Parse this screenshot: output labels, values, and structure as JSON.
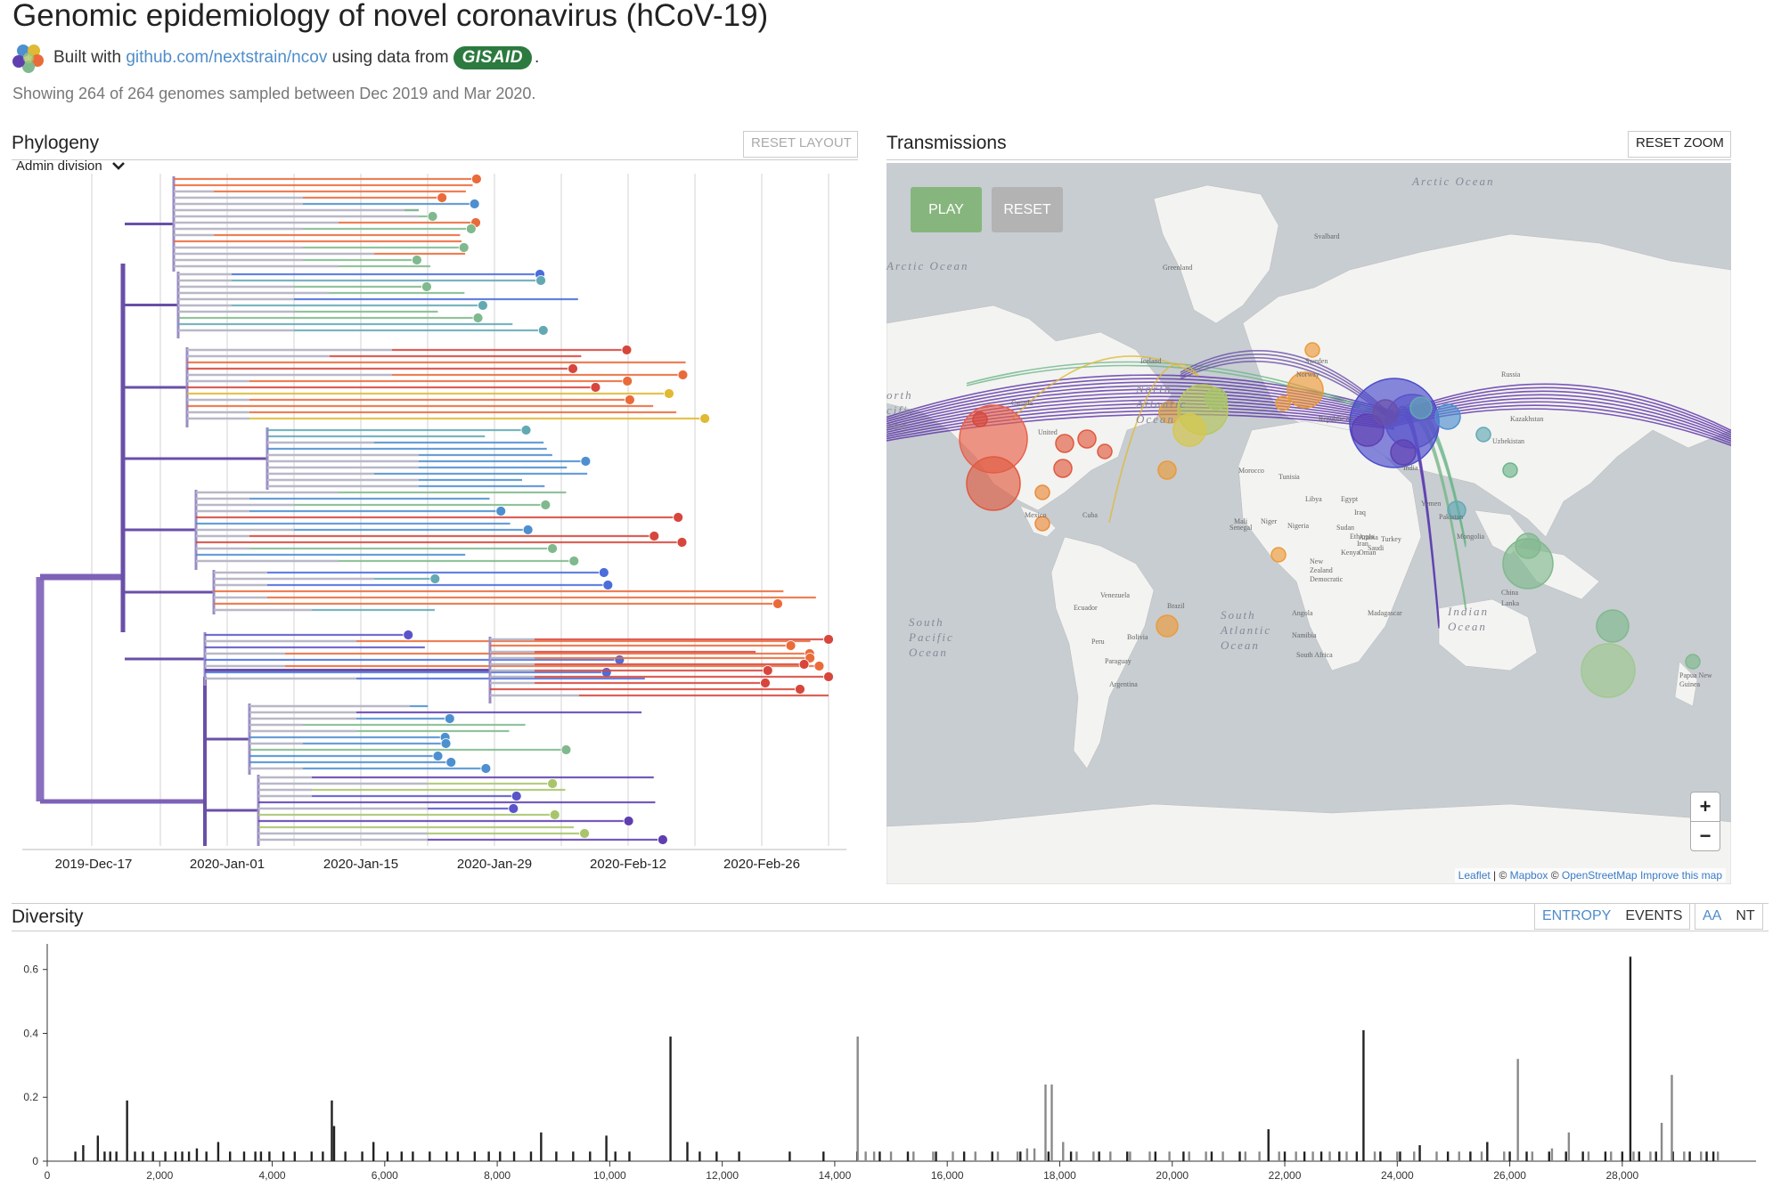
{
  "header": {
    "title": "Genomic epidemiology of novel coronavirus (hCoV-19)",
    "built_with": "Built with",
    "repo_link": "github.com/nextstrain/ncov",
    "using_data_from": "using data from",
    "gisaid": "GISAID",
    "period": ".",
    "showing": "Showing 264 of 264 genomes sampled between Dec 2019 and Mar 2020."
  },
  "phylogeny": {
    "title": "Phylogeny",
    "reset_layout": "RESET LAYOUT",
    "color_by": "Admin division",
    "date_ticks": [
      "2019-Dec-17",
      "2020-Jan-01",
      "2020-Jan-15",
      "2020-Jan-29",
      "2020-Feb-12",
      "2020-Feb-26"
    ]
  },
  "transmissions": {
    "title": "Transmissions",
    "reset_zoom": "RESET ZOOM",
    "play": "PLAY",
    "reset": "RESET",
    "zoom_in": "+",
    "zoom_out": "−",
    "attribution": {
      "leaflet": "Leaflet",
      "sep1": " | © ",
      "mapbox": "Mapbox",
      "sep2": " © ",
      "osm": "OpenStreetMap",
      "improve": "Improve this map"
    },
    "labels": {
      "arctic_ocean": "Arctic Ocean",
      "arctic_ocean_w": "Arctic Ocean",
      "north_atlantic": [
        "North",
        "Atlantic",
        "Ocean"
      ],
      "south_atlantic": [
        "South",
        "Atlantic",
        "Ocean"
      ],
      "south_pacific": [
        "South",
        "Pacific",
        "Ocean"
      ],
      "north_pacific": [
        "orth",
        "cific",
        "ean"
      ],
      "indian_ocean": [
        "Indian",
        "Ocean"
      ],
      "countries": [
        "Greenland",
        "Svalbard",
        "Iceland",
        "Sweden",
        "Norway",
        "Russia",
        "Canada",
        "United",
        "Mexico",
        "Cuba",
        "Venezuela",
        "Ecuador",
        "Peru",
        "Brazil",
        "Bolivia",
        "Paraguay",
        "Argentina",
        "Morocco",
        "Tunisia",
        "Libya",
        "Egypt",
        "Mali",
        "Niger",
        "Senegal",
        "Nigeria",
        "Sudan",
        "Ethiopia",
        "Kenya",
        "Angola",
        "Namibia",
        "South Africa",
        "Madagascar",
        "Turkey",
        "Iraq",
        "Iran",
        "Saudi",
        "Arabia",
        "Oman",
        "Yemen",
        "Pakistan",
        "India",
        "Uzbekistan",
        "Kazakhstan",
        "Mongolia",
        "China",
        "Lanka",
        "Papua New",
        "Guinea",
        "New",
        "Zealand",
        "Democratic",
        "Republic of",
        "the Congo",
        "Ukraine"
      ]
    }
  },
  "diversity": {
    "title": "Diversity",
    "entropy": "ENTROPY",
    "events": "EVENTS",
    "aa": "AA",
    "nt": "NT",
    "y_ticks": [
      "0",
      "0.2",
      "0.4",
      "0.6"
    ],
    "x_ticks": [
      "0",
      "2,000",
      "4,000",
      "6,000",
      "8,000",
      "10,000",
      "12,000",
      "14,000",
      "16,000",
      "18,000",
      "20,000",
      "22,000",
      "24,000",
      "26,000",
      "28,000"
    ]
  },
  "chart_data": {
    "type": "bar",
    "title": "Diversity",
    "xlim": [
      0,
      29903
    ],
    "ylim": [
      0,
      0.68
    ],
    "grid": false,
    "series": [
      {
        "points": [
          [
            500,
            0.03
          ],
          [
            640,
            0.05
          ],
          [
            900,
            0.08
          ],
          [
            1020,
            0.03
          ],
          [
            1120,
            0.03
          ],
          [
            1230,
            0.03
          ],
          [
            1420,
            0.19
          ],
          [
            1560,
            0.03
          ],
          [
            1700,
            0.03
          ],
          [
            1880,
            0.03
          ],
          [
            2100,
            0.03
          ],
          [
            2280,
            0.03
          ],
          [
            2400,
            0.03
          ],
          [
            2520,
            0.03
          ],
          [
            2660,
            0.04
          ],
          [
            2830,
            0.03
          ],
          [
            3040,
            0.06
          ],
          [
            3250,
            0.03
          ],
          [
            3500,
            0.03
          ],
          [
            3700,
            0.03
          ],
          [
            3800,
            0.03
          ],
          [
            3950,
            0.03
          ],
          [
            4200,
            0.03
          ],
          [
            4400,
            0.03
          ],
          [
            4700,
            0.03
          ],
          [
            4900,
            0.03
          ],
          [
            5060,
            0.19
          ],
          [
            5100,
            0.11
          ],
          [
            5300,
            0.03
          ],
          [
            5600,
            0.03
          ],
          [
            5800,
            0.06
          ],
          [
            6050,
            0.03
          ],
          [
            6300,
            0.03
          ],
          [
            6500,
            0.03
          ],
          [
            6800,
            0.03
          ],
          [
            7100,
            0.03
          ],
          [
            7300,
            0.03
          ],
          [
            7600,
            0.03
          ],
          [
            7850,
            0.03
          ],
          [
            8050,
            0.03
          ],
          [
            8300,
            0.03
          ],
          [
            8600,
            0.03
          ],
          [
            8780,
            0.09
          ],
          [
            9050,
            0.03
          ],
          [
            9350,
            0.03
          ],
          [
            9650,
            0.03
          ],
          [
            9940,
            0.08
          ],
          [
            10100,
            0.03
          ],
          [
            10350,
            0.03
          ],
          [
            11080,
            0.39
          ],
          [
            11380,
            0.06
          ],
          [
            11600,
            0.03
          ],
          [
            11900,
            0.03
          ],
          [
            12300,
            0.03
          ],
          [
            13200,
            0.03
          ],
          [
            13800,
            0.03
          ],
          [
            14400,
            0.03
          ],
          [
            14800,
            0.03
          ],
          [
            15300,
            0.03
          ],
          [
            15800,
            0.03
          ],
          [
            16300,
            0.03
          ],
          [
            16800,
            0.03
          ],
          [
            17300,
            0.03
          ],
          [
            17800,
            0.03
          ],
          [
            18200,
            0.03
          ],
          [
            18700,
            0.03
          ],
          [
            19200,
            0.03
          ],
          [
            19700,
            0.03
          ],
          [
            20200,
            0.03
          ],
          [
            20700,
            0.03
          ],
          [
            21200,
            0.03
          ],
          [
            21710,
            0.1
          ],
          [
            22000,
            0.03
          ],
          [
            22350,
            0.03
          ],
          [
            22650,
            0.03
          ],
          [
            22970,
            0.03
          ],
          [
            23280,
            0.03
          ],
          [
            23400,
            0.41
          ],
          [
            23700,
            0.03
          ],
          [
            24050,
            0.03
          ],
          [
            24400,
            0.05
          ],
          [
            24900,
            0.03
          ],
          [
            25300,
            0.03
          ],
          [
            25600,
            0.06
          ],
          [
            26000,
            0.03
          ],
          [
            26300,
            0.03
          ],
          [
            26700,
            0.03
          ],
          [
            27000,
            0.03
          ],
          [
            27300,
            0.03
          ],
          [
            27700,
            0.03
          ],
          [
            28000,
            0.03
          ],
          [
            28144,
            0.64
          ],
          [
            28300,
            0.03
          ],
          [
            28600,
            0.03
          ],
          [
            28900,
            0.03
          ],
          [
            29200,
            0.03
          ],
          [
            29500,
            0.03
          ],
          [
            29620,
            0.03
          ]
        ]
      },
      {
        "points": [
          [
            14408,
            0.39
          ],
          [
            14550,
            0.03
          ],
          [
            14700,
            0.03
          ],
          [
            15000,
            0.03
          ],
          [
            15400,
            0.03
          ],
          [
            15750,
            0.03
          ],
          [
            16100,
            0.03
          ],
          [
            16500,
            0.03
          ],
          [
            16900,
            0.03
          ],
          [
            17250,
            0.03
          ],
          [
            17420,
            0.04
          ],
          [
            17550,
            0.04
          ],
          [
            17747,
            0.24
          ],
          [
            17858,
            0.24
          ],
          [
            18060,
            0.06
          ],
          [
            18300,
            0.03
          ],
          [
            18600,
            0.03
          ],
          [
            18900,
            0.03
          ],
          [
            19250,
            0.03
          ],
          [
            19600,
            0.03
          ],
          [
            19950,
            0.03
          ],
          [
            20300,
            0.03
          ],
          [
            20600,
            0.03
          ],
          [
            20900,
            0.03
          ],
          [
            21300,
            0.03
          ],
          [
            21550,
            0.03
          ],
          [
            21900,
            0.03
          ],
          [
            22200,
            0.03
          ],
          [
            22500,
            0.03
          ],
          [
            22800,
            0.03
          ],
          [
            23100,
            0.03
          ],
          [
            23600,
            0.03
          ],
          [
            24000,
            0.03
          ],
          [
            24300,
            0.03
          ],
          [
            24700,
            0.03
          ],
          [
            25100,
            0.03
          ],
          [
            25500,
            0.03
          ],
          [
            25900,
            0.03
          ],
          [
            26144,
            0.32
          ],
          [
            26400,
            0.03
          ],
          [
            26750,
            0.04
          ],
          [
            27050,
            0.09
          ],
          [
            27400,
            0.03
          ],
          [
            27800,
            0.03
          ],
          [
            28200,
            0.03
          ],
          [
            28500,
            0.03
          ],
          [
            28700,
            0.12
          ],
          [
            28881,
            0.27
          ],
          [
            29100,
            0.03
          ],
          [
            29400,
            0.03
          ],
          [
            29700,
            0.03
          ]
        ]
      }
    ],
    "colors": [
      "#222222",
      "#8a8a8a"
    ]
  },
  "colors": {
    "accent": "#4f8dc9",
    "play": "#86b67d",
    "reset": "#b3b3b3",
    "branch_palette": [
      "#5f3fb0",
      "#5a54c9",
      "#4a6ddb",
      "#4e8fcf",
      "#63a9b4",
      "#80b98d",
      "#a8c56b",
      "#c9c648",
      "#e0b935",
      "#ec9a3a",
      "#ea6b3a",
      "#d7463c"
    ]
  }
}
